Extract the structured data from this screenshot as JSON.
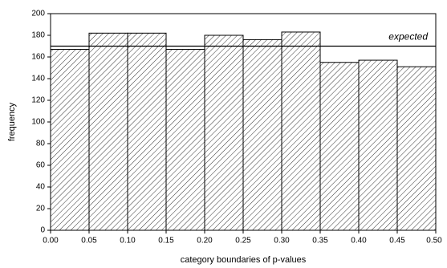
{
  "chart_data": {
    "type": "histogram",
    "xlabel": "category boundaries of p-values",
    "ylabel": "frequency",
    "bins": [
      0,
      0.05,
      0.1,
      0.15,
      0.2,
      0.25,
      0.3,
      0.35,
      0.4,
      0.45,
      0.5
    ],
    "counts": [
      167,
      182,
      182,
      167,
      180,
      176,
      183,
      155,
      157,
      151
    ],
    "expected": 170,
    "expected_label": "expected",
    "color": "#000000",
    "xlim": [
      0,
      0.5
    ],
    "xticks": [
      {
        "value": 0,
        "label": "0.00"
      },
      {
        "value": 0.05,
        "label": "0.05"
      },
      {
        "value": 0.1,
        "label": "0.10"
      },
      {
        "value": 0.15,
        "label": "0.15"
      },
      {
        "value": 0.2,
        "label": "0.20"
      },
      {
        "value": 0.25,
        "label": "0.25"
      },
      {
        "value": 0.3,
        "label": "0.30"
      },
      {
        "value": 0.35,
        "label": "0.35"
      },
      {
        "value": 0.4,
        "label": "0.40"
      },
      {
        "value": 0.45,
        "label": "0.45"
      },
      {
        "value": 0.5,
        "label": "0.50"
      }
    ],
    "ylim": [
      0,
      200
    ],
    "yticks": [
      0,
      20,
      40,
      60,
      80,
      100,
      120,
      140,
      160,
      180,
      200
    ]
  }
}
